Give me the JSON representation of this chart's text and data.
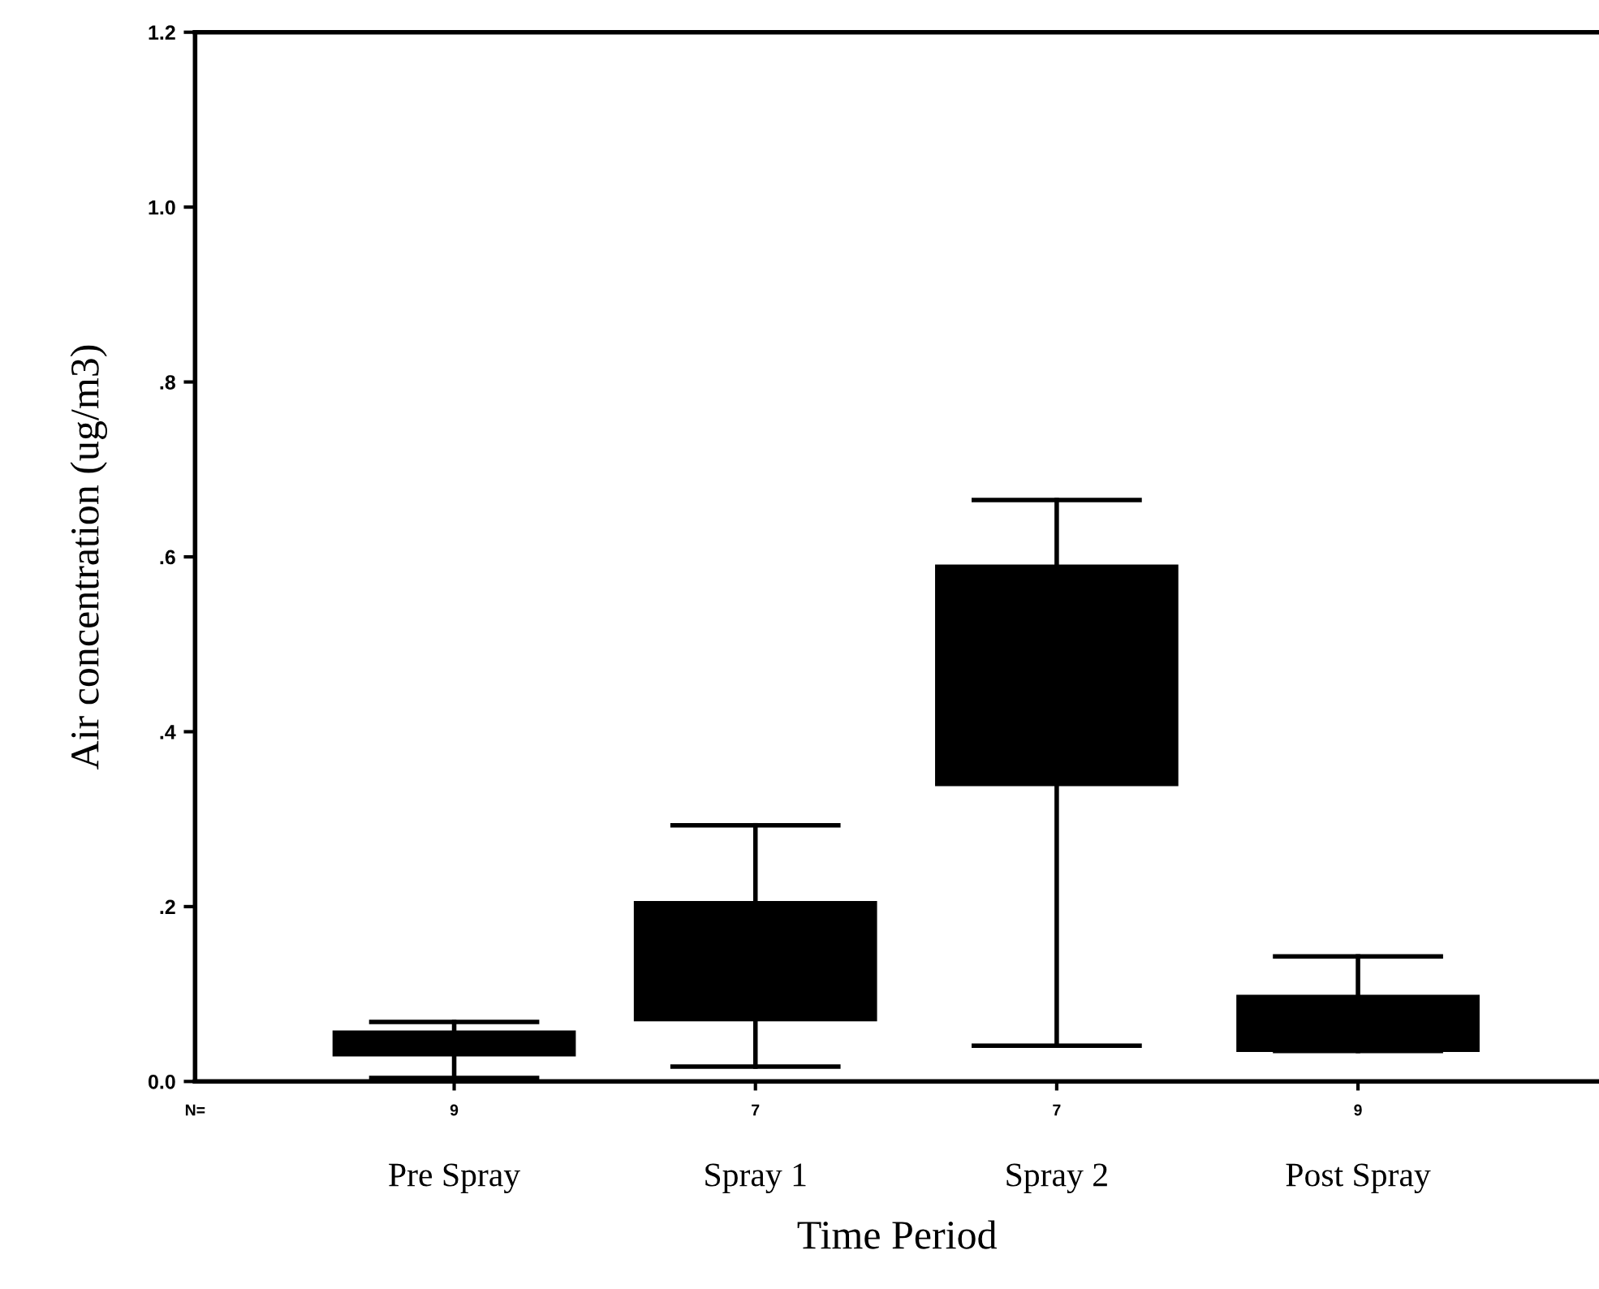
{
  "chart_data": {
    "type": "box",
    "xlabel": "Time Period",
    "ylabel": "Air concentration (ug/m3)",
    "categories": [
      "Pre Spray",
      "Spray 1",
      "Spray 2",
      "Post Spray"
    ],
    "boxes": [
      {
        "low": 0.004,
        "q1": 0.03,
        "median": 0.044,
        "q3": 0.057,
        "high": 0.068
      },
      {
        "low": 0.017,
        "q1": 0.07,
        "median": 0.14,
        "q3": 0.205,
        "high": 0.293
      },
      {
        "low": 0.041,
        "q1": 0.339,
        "median": 0.46,
        "q3": 0.59,
        "high": 0.665
      },
      {
        "low": 0.035,
        "q1": 0.035,
        "median": 0.065,
        "q3": 0.098,
        "high": 0.143
      }
    ],
    "color": "#000000",
    "ylim": [
      0,
      1.2
    ],
    "yticks": [
      {
        "value": 0,
        "label": "0.0"
      },
      {
        "value": 0.2,
        "label": ".2"
      },
      {
        "value": 0.4,
        "label": ".4"
      },
      {
        "value": 0.6,
        "label": ".6"
      },
      {
        "value": 0.8,
        "label": ".8"
      },
      {
        "value": 1.0,
        "label": "1.0"
      },
      {
        "value": 1.2,
        "label": "1.2"
      }
    ],
    "annotations": [
      "N=",
      "9",
      "7",
      "7",
      "9"
    ],
    "legend": false
  }
}
